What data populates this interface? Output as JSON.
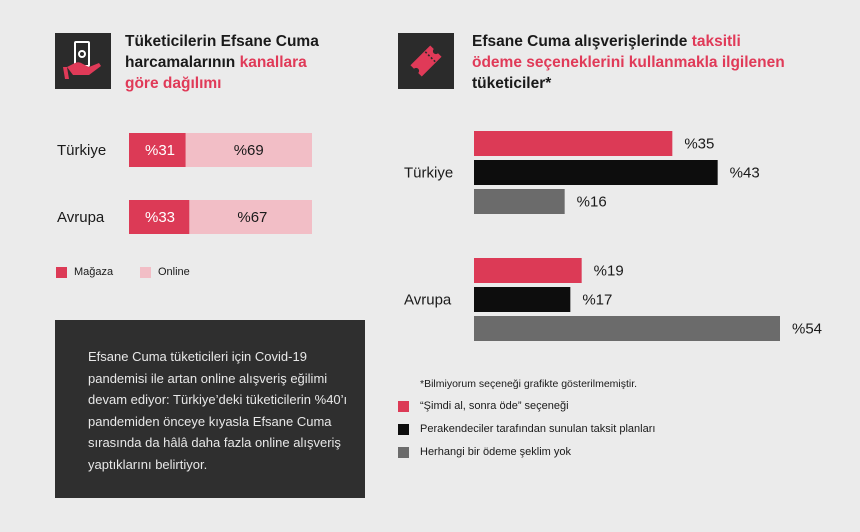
{
  "left": {
    "title": {
      "line1": "Tüketicilerin Efsane Cuma",
      "line2_plain": "harcamalarının ",
      "line2_hl": "kanallara",
      "line3_hl": "göre dağılımı"
    },
    "icon": "hand-holding-money-icon",
    "legend": [
      {
        "label": "Mağaza",
        "color": "#dc3a56"
      },
      {
        "label": "Online",
        "color": "#f2bec6"
      }
    ]
  },
  "right": {
    "title": {
      "line1_plain": "Efsane Cuma alışverişlerinde ",
      "line1_hl": "taksitli",
      "line2_hl": "ödeme seçeneklerini kullanmakla ilgilenen",
      "line3_plain": "tüketiciler*"
    },
    "icon": "ticket-icon",
    "footnote": "*Bilmiyorum seçeneği grafikte gösterilmemiştir.",
    "legend": [
      {
        "label": "“Şimdi al, sonra öde” seçeneği",
        "color": "#dc3a56"
      },
      {
        "label": "Perakendeciler tarafından sunulan taksit planları",
        "color": "#0d0d0d"
      },
      {
        "label": "Herhangi bir ödeme şeklim yok",
        "color": "#6b6b6b"
      }
    ]
  },
  "info_box": {
    "text": "Efsane Cuma tüketicileri için Covid-19 pandemisi ile artan online alışveriş eğilimi devam ediyor: Türkiye’deki tüketicilerin %40’ı pandemiden önceye kıyasla Efsane Cuma sırasında da hâlâ daha fazla online alışveriş yaptıklarını belirtiyor."
  },
  "chart_data": [
    {
      "type": "bar",
      "orientation": "horizontal",
      "stacked": true,
      "categories": [
        "Türkiye",
        "Avrupa"
      ],
      "series": [
        {
          "name": "Mağaza",
          "values": [
            31,
            33
          ],
          "labels": [
            "%31",
            "%33"
          ],
          "color": "#dc3a56"
        },
        {
          "name": "Online",
          "values": [
            69,
            67
          ],
          "labels": [
            "%69",
            "%67"
          ],
          "color": "#f2bec6"
        }
      ],
      "xlim": [
        0,
        100
      ],
      "legend": "bottom-left"
    },
    {
      "type": "bar",
      "orientation": "horizontal",
      "categories": [
        "Türkiye",
        "Avrupa"
      ],
      "series": [
        {
          "name": "“Şimdi al, sonra öde” seçeneği",
          "values": [
            35,
            19
          ],
          "labels": [
            "%35",
            "%19"
          ],
          "color": "#dc3a56"
        },
        {
          "name": "Perakendeciler tarafından sunulan taksit planları",
          "values": [
            43,
            17
          ],
          "labels": [
            "%43",
            "%17"
          ],
          "color": "#0d0d0d"
        },
        {
          "name": "Herhangi bir ödeme şeklim yok",
          "values": [
            16,
            54
          ],
          "labels": [
            "%16",
            "%54"
          ],
          "color": "#6b6b6b"
        }
      ],
      "legend": "bottom"
    }
  ]
}
